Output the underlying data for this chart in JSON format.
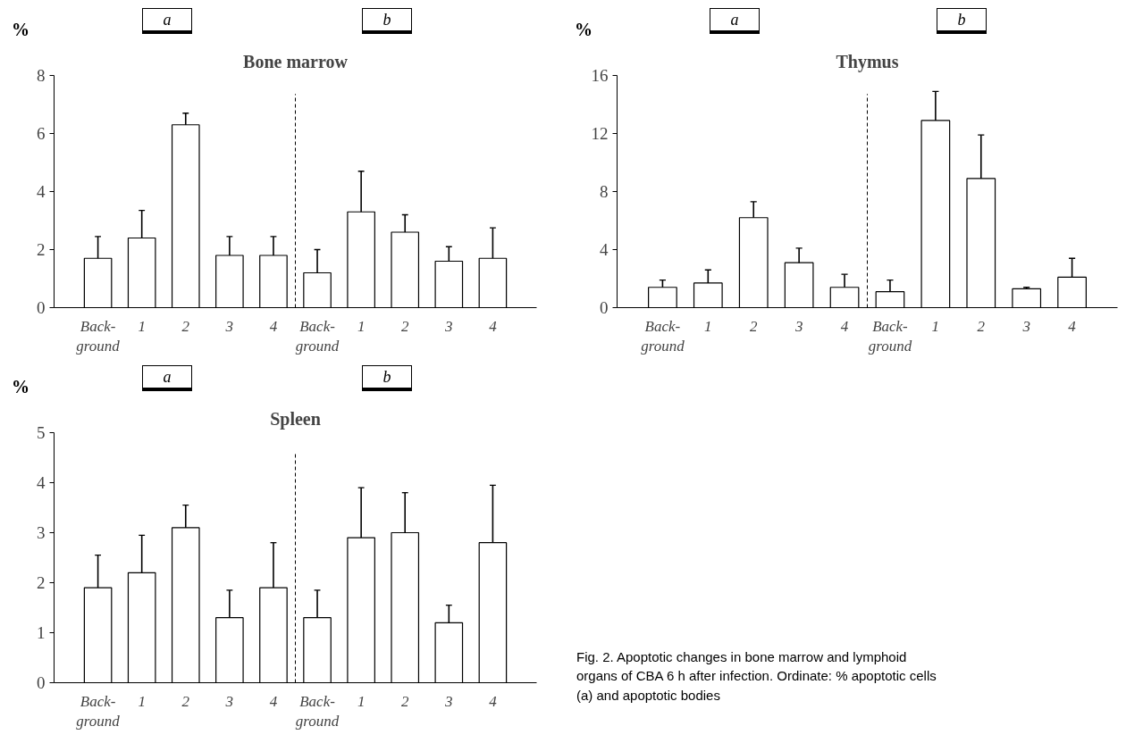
{
  "chart_data": [
    {
      "type": "bar",
      "title": "Bone marrow",
      "ylabel": "%",
      "categories": [
        "Back-\nground",
        "1",
        "2",
        "3",
        "4",
        "Back-\nground",
        "1",
        "2",
        "3",
        "4"
      ],
      "values": [
        1.7,
        2.4,
        6.3,
        1.8,
        1.8,
        1.2,
        3.3,
        2.6,
        1.6,
        1.7
      ],
      "errors": [
        [
          1.7,
          2.45
        ],
        [
          2.4,
          3.35
        ],
        [
          6.3,
          6.7
        ],
        [
          1.8,
          2.45
        ],
        [
          1.8,
          2.45
        ],
        [
          1.2,
          2.0
        ],
        [
          3.3,
          4.7
        ],
        [
          2.6,
          3.2
        ],
        [
          1.6,
          2.1
        ],
        [
          1.7,
          2.75
        ]
      ],
      "color": "#ffffff",
      "ylim": [
        0,
        8
      ],
      "yticks": [
        0,
        2,
        4,
        6,
        8
      ],
      "grid": false,
      "annotations": [
        "a",
        "b"
      ]
    },
    {
      "type": "bar",
      "title": "Thymus",
      "ylabel": "%",
      "categories": [
        "Back-\nground",
        "1",
        "2",
        "3",
        "4",
        "Back-\nground",
        "1",
        "2",
        "3",
        "4"
      ],
      "values": [
        1.4,
        1.7,
        6.2,
        3.1,
        1.4,
        1.1,
        12.9,
        8.9,
        1.3,
        2.1
      ],
      "errors": [
        [
          1.4,
          1.9
        ],
        [
          1.7,
          2.6
        ],
        [
          6.2,
          7.3
        ],
        [
          3.1,
          4.1
        ],
        [
          1.4,
          2.3
        ],
        [
          1.1,
          1.9
        ],
        [
          12.9,
          14.9
        ],
        [
          8.9,
          11.9
        ],
        [
          1.3,
          1.4
        ],
        [
          2.1,
          3.4
        ]
      ],
      "color": "#ffffff",
      "ylim": [
        0,
        16
      ],
      "yticks": [
        0,
        4,
        8,
        12,
        16
      ],
      "grid": false,
      "annotations": [
        "a",
        "b"
      ]
    },
    {
      "type": "bar",
      "title": "Spleen",
      "ylabel": "%",
      "categories": [
        "Back-\nground",
        "1",
        "2",
        "3",
        "4",
        "Back-\nground",
        "1",
        "2",
        "3",
        "4"
      ],
      "values": [
        1.9,
        2.2,
        3.1,
        1.3,
        1.9,
        1.3,
        2.9,
        3.0,
        1.2,
        2.8
      ],
      "errors": [
        [
          1.9,
          2.55
        ],
        [
          2.2,
          2.95
        ],
        [
          3.1,
          3.55
        ],
        [
          1.3,
          1.85
        ],
        [
          1.9,
          2.8
        ],
        [
          1.3,
          1.85
        ],
        [
          2.9,
          3.9
        ],
        [
          3.0,
          3.8
        ],
        [
          1.2,
          1.55
        ],
        [
          2.8,
          3.95
        ]
      ],
      "color": "#ffffff",
      "ylim": [
        0,
        5
      ],
      "yticks": [
        0,
        1,
        2,
        3,
        4,
        5
      ],
      "grid": false,
      "annotations": [
        "a",
        "b",
        "Fig. 2. Apoptotic changes in bone marrow and lymphoid organs of CBA 6 h after infection. Ordinate: % apoptotic cells (a) and apoptotic bodies"
      ]
    }
  ]
}
